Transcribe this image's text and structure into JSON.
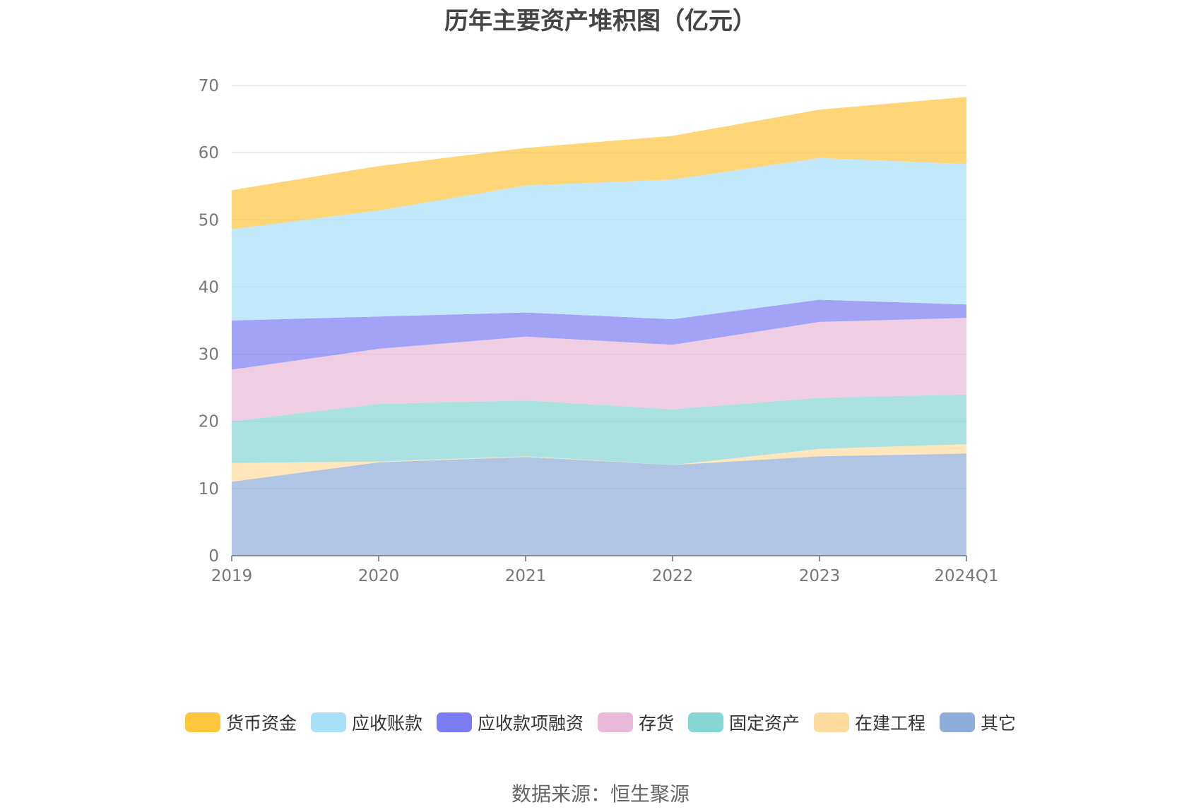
{
  "chart_data": {
    "type": "area",
    "stacked": true,
    "title": "历年主要资产堆积图（亿元）",
    "categories": [
      "2019",
      "2020",
      "2021",
      "2022",
      "2023",
      "2024Q1"
    ],
    "y_ticks": [
      "0",
      "10",
      "20",
      "30",
      "40",
      "50",
      "60",
      "70"
    ],
    "ylim": [
      0,
      70
    ],
    "grid": true,
    "legend_position": "bottom",
    "series": [
      {
        "name": "其它",
        "color": "#8fadd9",
        "values": [
          11.0,
          13.9,
          14.7,
          13.5,
          14.8,
          15.2
        ]
      },
      {
        "name": "在建工程",
        "color": "#ffdb9e",
        "values": [
          2.8,
          0.1,
          0.1,
          0.0,
          1.1,
          1.4
        ]
      },
      {
        "name": "固定资产",
        "color": "#86d6d6",
        "values": [
          6.2,
          8.6,
          8.3,
          8.3,
          7.6,
          7.4
        ]
      },
      {
        "name": "存货",
        "color": "#e8b9d9",
        "values": [
          7.7,
          8.2,
          9.5,
          9.6,
          11.3,
          11.4
        ]
      },
      {
        "name": "应收款项融资",
        "color": "#7b7cf2",
        "values": [
          7.3,
          4.8,
          3.6,
          3.8,
          3.3,
          2.0
        ]
      },
      {
        "name": "应收账款",
        "color": "#a8e0fa",
        "values": [
          13.6,
          15.8,
          18.9,
          20.8,
          21.1,
          20.9
        ]
      },
      {
        "name": "货币资金",
        "color": "#ffc53d",
        "values": [
          5.8,
          6.6,
          5.6,
          6.5,
          7.2,
          10.0
        ]
      }
    ]
  },
  "legend_order": [
    "货币资金",
    "应收账款",
    "应收款项融资",
    "存货",
    "固定资产",
    "在建工程",
    "其它"
  ],
  "source": "数据来源：恒生聚源"
}
